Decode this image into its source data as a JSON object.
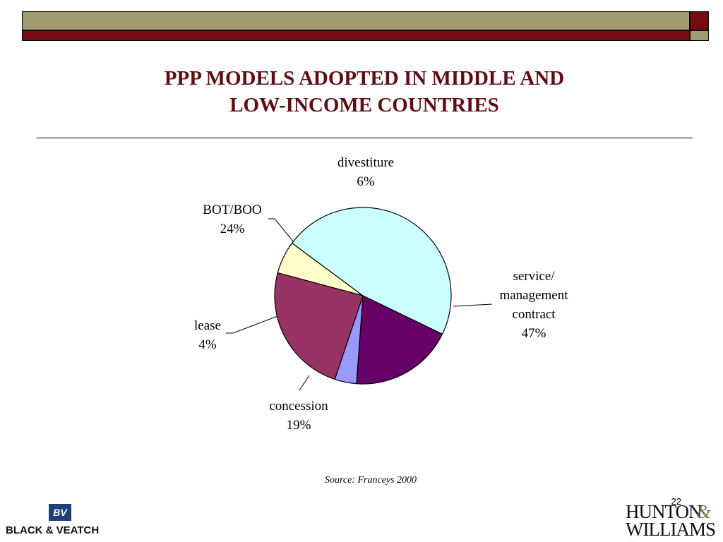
{
  "slide": {
    "title_line1": "PPP MODELS ADOPTED IN MIDDLE AND",
    "title_line2": "LOW-INCOME COUNTRIES",
    "source": "Source: Franceys 2000",
    "page_number": "22"
  },
  "colors": {
    "band_olive": "#a29b6d",
    "band_maroon": "#7a0a12",
    "title": "#5e0d12"
  },
  "logos": {
    "left_mark": "BV",
    "left_text": "BLACK & VEATCH",
    "right_line1": "HUNTON",
    "right_amp": "&",
    "right_line2": "WILLIAMS"
  },
  "chart_data": {
    "type": "pie",
    "title": "",
    "slices": [
      {
        "label": "divestiture",
        "value": 6,
        "color": "#ffffcc"
      },
      {
        "label": "service/ management contract",
        "value": 47,
        "color": "#ccffff"
      },
      {
        "label": "concession",
        "value": 19,
        "color": "#660066"
      },
      {
        "label": "lease",
        "value": 4,
        "color": "#9999ff"
      },
      {
        "label": "BOT/BOO",
        "value": 24,
        "color": "#993366"
      }
    ],
    "value_suffix": "%",
    "legend": "none"
  }
}
